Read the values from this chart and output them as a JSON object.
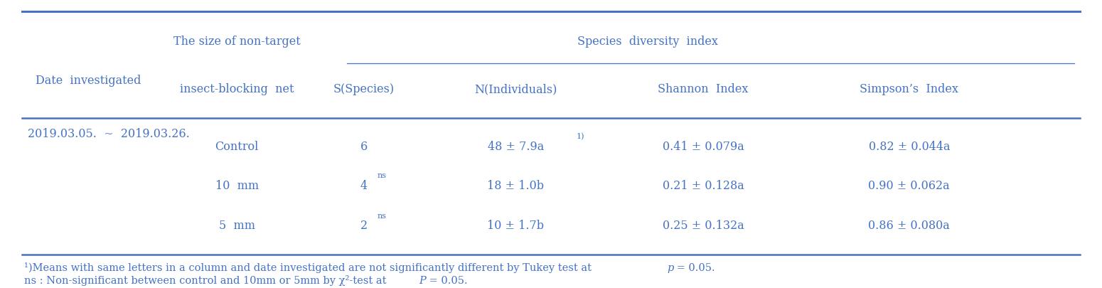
{
  "title_row1": "Species  diversity  index",
  "col_headers": [
    "S(Species)",
    "N(Individuals)",
    "Shannon  Index",
    "Simpson’s  Index"
  ],
  "row_header1": "Date  investigated",
  "row_header2_line1": "The size of non-target",
  "row_header2_line2": "insect-blocking  net",
  "date_label": "2019.03.05.  ~  2019.03.26.",
  "net_sizes": [
    "Control",
    "10  mm",
    "5  mm"
  ],
  "s_values": [
    "6",
    "4",
    "2"
  ],
  "s_superscripts": [
    "",
    "ns",
    "ns"
  ],
  "n_values": [
    "48 ± 7.9a",
    "18 ± 1.0b",
    "10 ± 1.7b"
  ],
  "n_superscripts": [
    "1)",
    "",
    ""
  ],
  "shannon_values": [
    "0.41 ± 0.079a",
    "0.21 ± 0.128a",
    "0.25 ± 0.132a"
  ],
  "simpson_values": [
    "0.82 ± 0.044a",
    "0.90 ± 0.062a",
    "0.86 ± 0.080a"
  ],
  "footnote1_pre": "¹)Means with same letters in a column and date investigated are not significantly different by Tukey test at ",
  "footnote1_italic": "p",
  "footnote1_post": " = 0.05.",
  "footnote2_pre": "ns : Non-significant between control and 10mm or 5mm by χ²-test at ",
  "footnote2_italic": "P",
  "footnote2_post": " = 0.05.",
  "text_color": "#4472c4",
  "bg_color": "#ffffff",
  "font_size": 11.5,
  "small_font_size": 8.0,
  "footnote_font_size": 10.5
}
